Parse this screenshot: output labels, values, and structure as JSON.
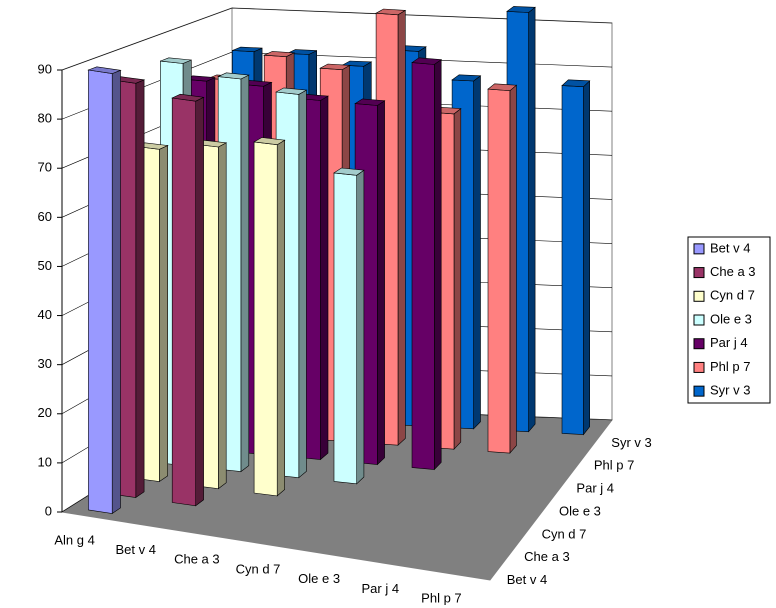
{
  "chart_data": {
    "type": "bar3d",
    "categories": [
      "Aln g 4",
      "Bet v 4",
      "Che a 3",
      "Cyn d 7",
      "Ole e 3",
      "Par j 4",
      "Phl p 7"
    ],
    "series": [
      {
        "name": "Bet v 4",
        "color": "#9999ff",
        "values": [
          90,
          null,
          null,
          null,
          null,
          null,
          null
        ]
      },
      {
        "name": "Che a 3",
        "color": "#993366",
        "values": [
          86,
          84,
          null,
          null,
          null,
          null,
          null
        ]
      },
      {
        "name": "Cyn d 7",
        "color": "#ffffcc",
        "values": [
          70,
          72,
          74,
          null,
          null,
          null,
          null
        ]
      },
      {
        "name": "Ole e 3",
        "color": "#ccffff",
        "values": [
          86,
          84,
          82,
          66,
          null,
          null,
          null
        ]
      },
      {
        "name": "Par j 4",
        "color": "#660066",
        "values": [
          80,
          80,
          78,
          78,
          88,
          null,
          null
        ]
      },
      {
        "name": "Phl p 7",
        "color": "#ff8080",
        "values": [
          78,
          84,
          82,
          95,
          74,
          80,
          null
        ]
      },
      {
        "name": "Syr v 3",
        "color": "#0066cc",
        "values": [
          82,
          82,
          80,
          84,
          78,
          94,
          78
        ]
      }
    ],
    "ylim": [
      0,
      90
    ],
    "yticks": [
      0,
      10,
      20,
      30,
      40,
      50,
      60,
      70,
      80,
      90
    ],
    "grid": true,
    "legend": "right"
  }
}
